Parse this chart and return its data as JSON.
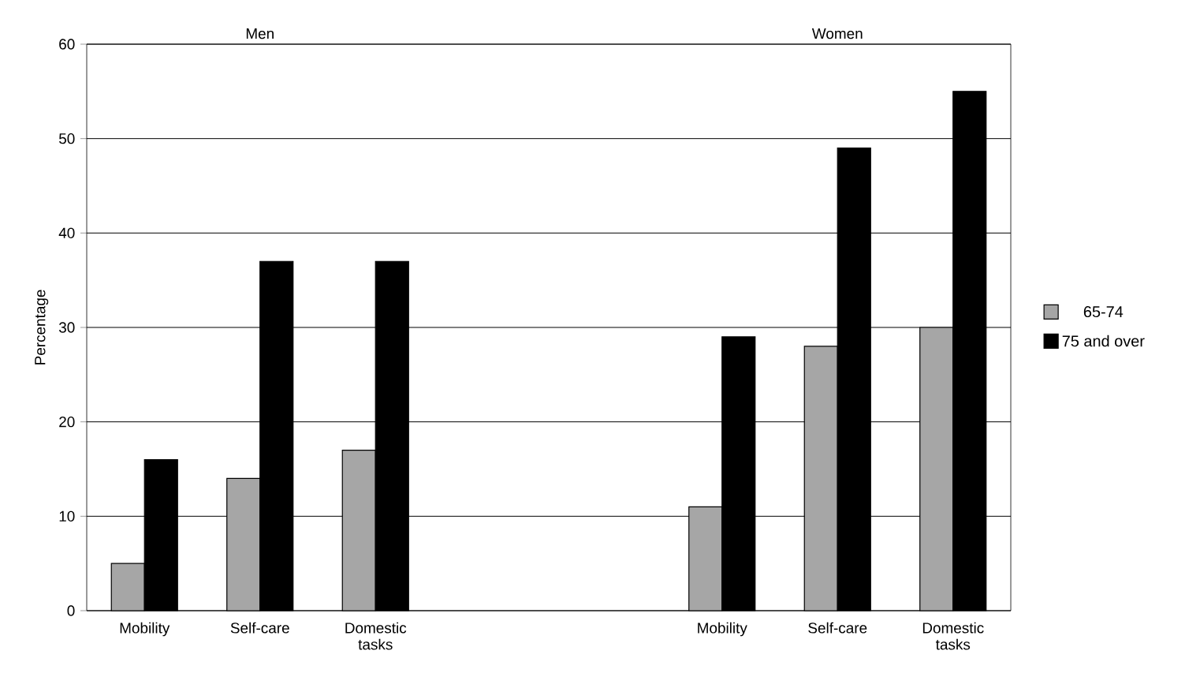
{
  "chart_data": {
    "type": "bar",
    "ylabel": "Percentage",
    "categories": [
      "Mobility",
      "Self-care",
      "Domestic tasks",
      null,
      null,
      "Mobility",
      "Self-care",
      "Domestic tasks"
    ],
    "series": [
      {
        "name": "65-74",
        "color": "#a6a6a6",
        "values": [
          5,
          14,
          17,
          null,
          null,
          11,
          28,
          30
        ]
      },
      {
        "name": "75 and over",
        "color": "#000000",
        "values": [
          16,
          37,
          37,
          null,
          null,
          29,
          49,
          55
        ]
      }
    ],
    "annotations": [
      "Men",
      "Women"
    ],
    "ylim": [
      0,
      60
    ],
    "yticks": [
      0,
      10,
      20,
      30,
      40,
      50,
      60
    ],
    "grid": "y",
    "legend": "right"
  }
}
